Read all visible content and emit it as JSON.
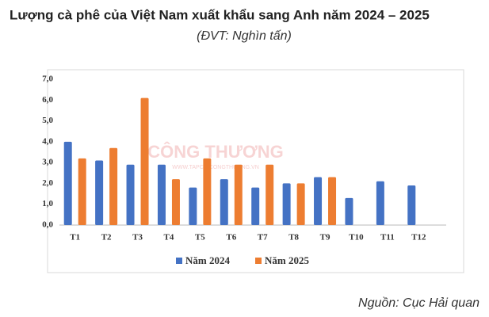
{
  "chart_data": {
    "type": "bar",
    "title": "Lượng cà phê của Việt Nam xuất khẩu sang Anh năm 2024 – 2025",
    "subtitle": "(ĐVT: Nghìn tấn)",
    "source": "Nguồn: Cục Hải quan",
    "watermark": [
      "CÔNG THƯƠNG",
      "WWW.TAPCHICONGTHUONG.VN"
    ],
    "categories": [
      "T1",
      "T2",
      "T3",
      "T4",
      "T5",
      "T6",
      "T7",
      "T8",
      "T9",
      "T10",
      "T11",
      "T12"
    ],
    "series": [
      {
        "name": "Năm 2024",
        "color": "#4472c4",
        "values": [
          4.0,
          3.1,
          2.9,
          2.9,
          1.8,
          2.2,
          1.8,
          2.0,
          2.3,
          1.3,
          2.1,
          1.9
        ]
      },
      {
        "name": "Năm 2025",
        "color": "#ed7d31",
        "values": [
          3.2,
          3.7,
          6.1,
          2.2,
          3.2,
          2.9,
          2.9,
          2.0,
          2.3,
          null,
          null,
          null
        ]
      }
    ],
    "ylim": [
      0,
      7
    ],
    "yticks": [
      {
        "value": 0,
        "label": "0,0"
      },
      {
        "value": 1,
        "label": "1,0"
      },
      {
        "value": 2,
        "label": "2,0"
      },
      {
        "value": 3,
        "label": "3,0"
      },
      {
        "value": 4,
        "label": "4,0"
      },
      {
        "value": 5,
        "label": "5,0"
      },
      {
        "value": 6,
        "label": "6,0"
      },
      {
        "value": 7,
        "label": "7,0"
      }
    ],
    "grid": false,
    "legend": "bottom"
  }
}
